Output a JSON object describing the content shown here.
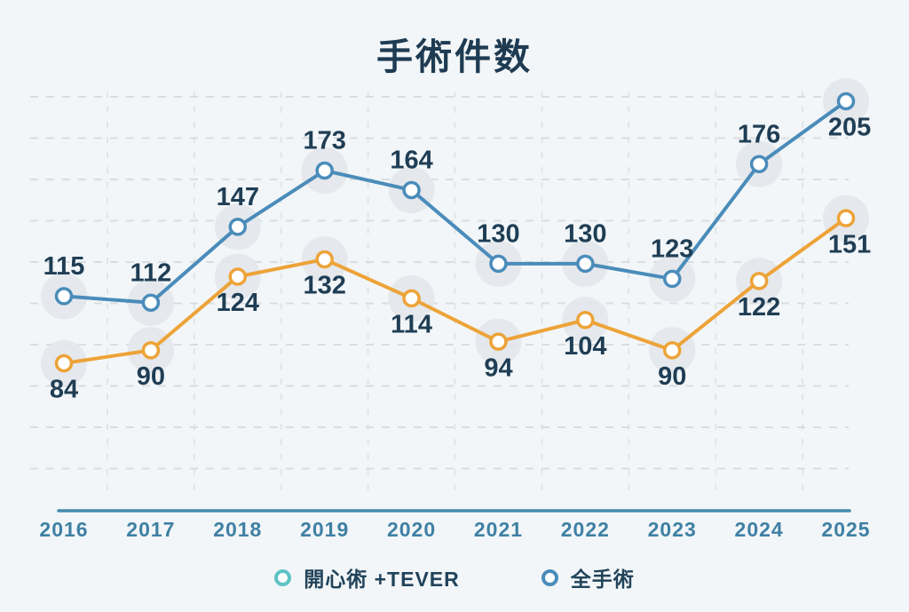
{
  "page": {
    "background_color": "#f2f6f8"
  },
  "chart_data": {
    "type": "line",
    "title": "手術件数",
    "categories": [
      "2016",
      "2017",
      "2018",
      "2019",
      "2020",
      "2021",
      "2022",
      "2023",
      "2024",
      "2025"
    ],
    "series": [
      {
        "name": "開心術 +TEVER",
        "values": [
          84,
          90,
          124,
          132,
          114,
          94,
          104,
          90,
          122,
          151
        ],
        "line_color": "#eda338",
        "marker_fill": "#ffffff",
        "legend_marker_color": "#5fc3c6",
        "label_side": "below"
      },
      {
        "name": "全手術",
        "values": [
          115,
          112,
          147,
          173,
          164,
          130,
          130,
          123,
          176,
          205
        ],
        "line_color": "#4a8cba",
        "marker_fill": "#ffffff",
        "legend_marker_color": "#4a8cba",
        "label_side": "above",
        "label_side_last_point": "below"
      }
    ],
    "xlabel": "",
    "ylabel": "",
    "ylim": [
      0,
      230
    ],
    "grid": "horizontal dashed lines plus faint vertical dashed lines between year ticks",
    "legend_position": "bottom-center",
    "colors": {
      "title_text": "#1e3b52",
      "data_label_text": "#1f3e55",
      "tick_label_text": "#3f80a4",
      "axis_line": "#4589ae",
      "gridline": "#d9dde1",
      "point_halo": "#e3e7ea",
      "background": "#f2f6f8"
    }
  }
}
